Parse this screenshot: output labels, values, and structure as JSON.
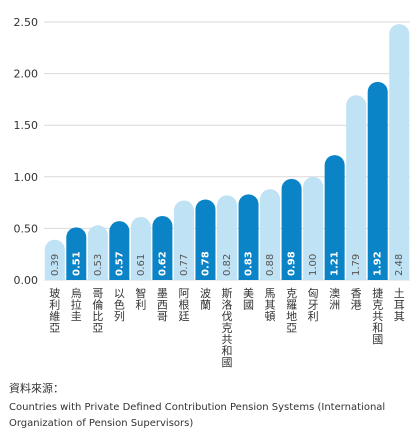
{
  "chart_data": {
    "type": "bar",
    "ylim": [
      0,
      2.5
    ],
    "yticks": [
      "0.00",
      "0.50",
      "1.00",
      "1.50",
      "2.00",
      "2.50"
    ],
    "grid": true,
    "colors": {
      "light": "#bfe2f4",
      "dark": "#0a84c6",
      "grid": "#d9d9d9"
    },
    "categories": [
      "玻利維亞",
      "烏拉圭",
      "哥倫比亞",
      "以色列",
      "智利",
      "墨西哥",
      "阿根廷",
      "波蘭",
      "斯洛伐克共和國",
      "美國",
      "馬其頓",
      "克羅地亞",
      "匈牙利",
      "澳洲",
      "香港",
      "捷克共和國",
      "土耳其"
    ],
    "values": [
      0.39,
      0.51,
      0.53,
      0.57,
      0.61,
      0.62,
      0.77,
      0.78,
      0.82,
      0.83,
      0.88,
      0.98,
      1.0,
      1.21,
      1.79,
      1.92,
      2.48
    ],
    "value_labels": [
      "0.39",
      "0.51",
      "0.53",
      "0.57",
      "0.61",
      "0.62",
      "0.77",
      "0.78",
      "0.82",
      "0.83",
      "0.88",
      "0.98",
      "1.00",
      "1.21",
      "1.79",
      "1.92",
      "2.48"
    ],
    "highlight": [
      false,
      true,
      false,
      true,
      false,
      true,
      false,
      true,
      false,
      true,
      false,
      true,
      false,
      true,
      false,
      true,
      false
    ]
  },
  "source": {
    "title": "資料來源：",
    "text": "Countries with Private Defined Contribution Pension Systems (International Organization of Pension Supervisors)"
  }
}
